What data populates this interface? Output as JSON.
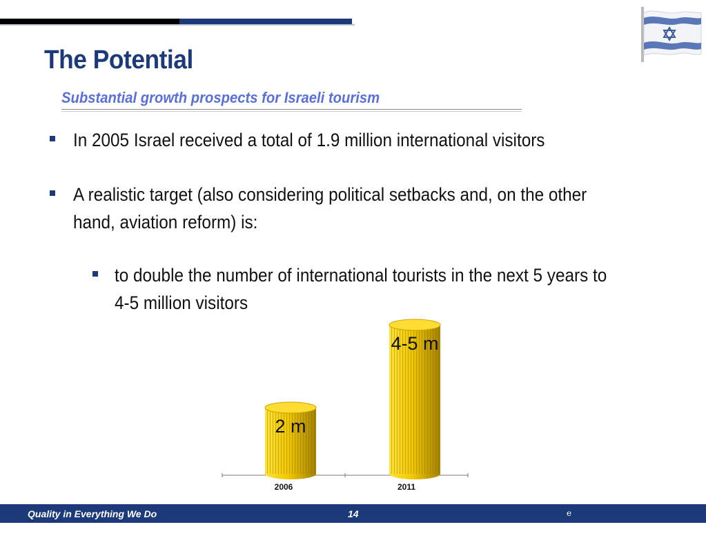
{
  "slide": {
    "title": "The Potential",
    "subtitle": "Substantial growth prospects for Israeli tourism",
    "bullets": [
      {
        "text": "In 2005 Israel received a total of 1.9 million international visitors"
      },
      {
        "line1": "A realistic target (also considering political setbacks and, on the other",
        "line2": "hand, aviation reform) is:"
      }
    ],
    "sub_bullets": [
      {
        "line1": "to double the number of international tourists in the next 5 years to",
        "line2": "4-5 million visitors"
      }
    ]
  },
  "chart_data": {
    "type": "bar",
    "categories": [
      "2006",
      "2011"
    ],
    "values": [
      2,
      4.5
    ],
    "data_labels": [
      "2 m",
      "4-5 m"
    ],
    "bar_color": "#f0c800",
    "bar_shadow_color": "#a48200"
  },
  "footer": {
    "tagline": "Quality in Everything We Do",
    "page_number": "14",
    "mark": "e"
  },
  "icons": {
    "flag": "israel-flag-icon",
    "bullet": "square-bullet-icon"
  },
  "colors": {
    "title": "#1c3a7a",
    "subtitle": "#5b6fd8",
    "footer_bg": "#1c3a7a"
  }
}
